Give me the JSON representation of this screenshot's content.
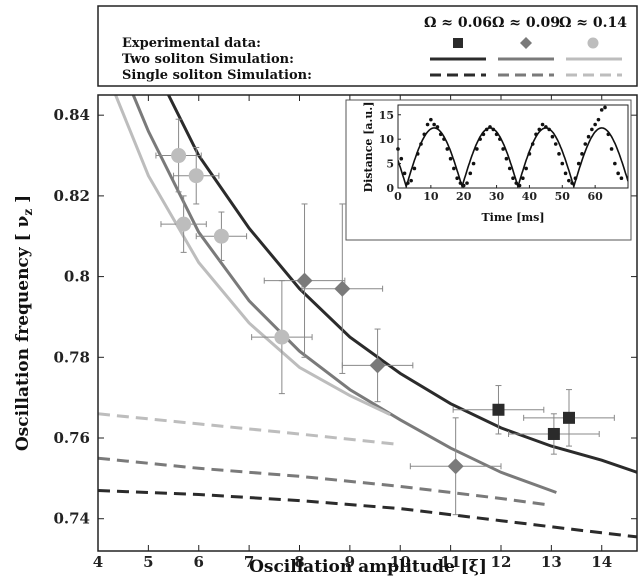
{
  "colors": {
    "omega_006": "#2b2b2b",
    "omega_009": "#7a7a7a",
    "omega_014": "#bdbdbd",
    "errorbar": "#888888",
    "axis": "#222222"
  },
  "legend": {
    "headers": [
      "Ω ≈ 0.06",
      "Ω ≈ 0.09",
      "Ω ≈ 0.14"
    ],
    "rows": [
      "Experimental data:",
      "Two soliton Simulation:",
      "Single soliton Simulation:"
    ]
  },
  "chart_data": [
    {
      "type": "scatter",
      "xlabel": "Oscillation amplitude [ξ]",
      "ylabel": "Oscillation frequency [ ν",
      "ylabel_sub": "z",
      "ylabel_end": " ]",
      "xlim": [
        4,
        14.7
      ],
      "ylim": [
        0.732,
        0.845
      ],
      "xticks": [
        "4",
        "5",
        "6",
        "7",
        "8",
        "9",
        "10",
        "11",
        "12",
        "13",
        "14"
      ],
      "yticks": [
        "0.74",
        "0.76",
        "0.78",
        "0.8",
        "0.82",
        "0.84"
      ],
      "xtick_values": [
        4,
        5,
        6,
        7,
        8,
        9,
        10,
        11,
        12,
        13,
        14
      ],
      "ytick_values": [
        0.74,
        0.76,
        0.78,
        0.8,
        0.82,
        0.84
      ],
      "series": [
        {
          "name": "Ω ≈ 0.06",
          "marker": "square",
          "experimental": [
            {
              "x": 11.95,
              "y": 0.767,
              "xerr": 0.9,
              "yerr": 0.006
            },
            {
              "x": 13.05,
              "y": 0.761,
              "xerr": 0.9,
              "yerr": 0.005
            },
            {
              "x": 13.35,
              "y": 0.765,
              "xerr": 0.9,
              "yerr": 0.007
            }
          ],
          "two_soliton": [
            [
              5.4,
              0.845
            ],
            [
              6,
              0.83
            ],
            [
              7,
              0.812
            ],
            [
              8,
              0.797
            ],
            [
              9,
              0.785
            ],
            [
              10,
              0.776
            ],
            [
              11,
              0.7685
            ],
            [
              12,
              0.7625
            ],
            [
              13,
              0.758
            ],
            [
              14,
              0.7545
            ],
            [
              14.7,
              0.7515
            ]
          ],
          "single_soliton": [
            [
              4,
              0.747
            ],
            [
              6,
              0.746
            ],
            [
              8,
              0.7445
            ],
            [
              10,
              0.7425
            ],
            [
              12,
              0.7395
            ],
            [
              13,
              0.738
            ],
            [
              14,
              0.7365
            ],
            [
              14.7,
              0.7355
            ]
          ]
        },
        {
          "name": "Ω ≈ 0.09",
          "marker": "diamond",
          "experimental": [
            {
              "x": 8.1,
              "y": 0.799,
              "xerr": 0.8,
              "yerr": 0.019
            },
            {
              "x": 8.85,
              "y": 0.797,
              "xerr": 0.8,
              "yerr": 0.021
            },
            {
              "x": 9.55,
              "y": 0.778,
              "xerr": 0.7,
              "yerr": 0.009
            },
            {
              "x": 11.1,
              "y": 0.753,
              "xerr": 0.9,
              "yerr": 0.012
            }
          ],
          "two_soliton": [
            [
              4.7,
              0.845
            ],
            [
              5,
              0.836
            ],
            [
              6,
              0.811
            ],
            [
              7,
              0.794
            ],
            [
              8,
              0.7815
            ],
            [
              9,
              0.772
            ],
            [
              10,
              0.7645
            ],
            [
              11,
              0.7575
            ],
            [
              12,
              0.7515
            ],
            [
              13.1,
              0.7465
            ]
          ],
          "single_soliton": [
            [
              4,
              0.755
            ],
            [
              6,
              0.7525
            ],
            [
              8,
              0.7505
            ],
            [
              10,
              0.748
            ],
            [
              12,
              0.745
            ],
            [
              12.9,
              0.7435
            ]
          ]
        },
        {
          "name": "Ω ≈ 0.14",
          "marker": "circle",
          "experimental": [
            {
              "x": 5.6,
              "y": 0.83,
              "xerr": 0.45,
              "yerr": 0.009
            },
            {
              "x": 5.7,
              "y": 0.813,
              "xerr": 0.45,
              "yerr": 0.007
            },
            {
              "x": 5.95,
              "y": 0.825,
              "xerr": 0.45,
              "yerr": 0.007
            },
            {
              "x": 6.45,
              "y": 0.81,
              "xerr": 0.5,
              "yerr": 0.006
            },
            {
              "x": 7.65,
              "y": 0.785,
              "xerr": 0.6,
              "yerr": 0.014
            }
          ],
          "two_soliton": [
            [
              4.35,
              0.845
            ],
            [
              5,
              0.825
            ],
            [
              6,
              0.8035
            ],
            [
              7,
              0.7885
            ],
            [
              8,
              0.7775
            ],
            [
              9,
              0.7705
            ],
            [
              9.8,
              0.7658
            ]
          ],
          "single_soliton": [
            [
              4,
              0.766
            ],
            [
              6,
              0.7635
            ],
            [
              8,
              0.761
            ],
            [
              9.9,
              0.7585
            ]
          ]
        }
      ]
    },
    {
      "type": "line",
      "xlabel": "Time [ms]",
      "ylabel": "Distance [a.u.]",
      "xlim": [
        0,
        70
      ],
      "ylim": [
        0,
        17
      ],
      "xticks": [
        "0",
        "10",
        "20",
        "30",
        "40",
        "50",
        "60"
      ],
      "yticks": [
        "0",
        "5",
        "10",
        "15"
      ],
      "xtick_values": [
        0,
        10,
        20,
        30,
        40,
        50,
        60
      ],
      "ytick_values": [
        0,
        5,
        10,
        15
      ],
      "fit_period_ms": 17.0,
      "points": [
        [
          0,
          8
        ],
        [
          1,
          6
        ],
        [
          2,
          3
        ],
        [
          3,
          1
        ],
        [
          4,
          1.5
        ],
        [
          5,
          4
        ],
        [
          6,
          7
        ],
        [
          7,
          9
        ],
        [
          8,
          11
        ],
        [
          9,
          13
        ],
        [
          10,
          14
        ],
        [
          11,
          13
        ],
        [
          12,
          12.5
        ],
        [
          13,
          11
        ],
        [
          14,
          10
        ],
        [
          15,
          8
        ],
        [
          16,
          6
        ],
        [
          17,
          4
        ],
        [
          18,
          2
        ],
        [
          19,
          1
        ],
        [
          20,
          0.5
        ],
        [
          21,
          1
        ],
        [
          22,
          3
        ],
        [
          23,
          5
        ],
        [
          24,
          8
        ],
        [
          25,
          10
        ],
        [
          26,
          11
        ],
        [
          27,
          12
        ],
        [
          28,
          12.5
        ],
        [
          29,
          12
        ],
        [
          30,
          11
        ],
        [
          31,
          10
        ],
        [
          32,
          8
        ],
        [
          33,
          6
        ],
        [
          34,
          4
        ],
        [
          35,
          2
        ],
        [
          36,
          1
        ],
        [
          37,
          0.5
        ],
        [
          38,
          2
        ],
        [
          39,
          4
        ],
        [
          40,
          7
        ],
        [
          41,
          9
        ],
        [
          42,
          11
        ],
        [
          43,
          12
        ],
        [
          44,
          13
        ],
        [
          45,
          12.5
        ],
        [
          46,
          12
        ],
        [
          47,
          10.5
        ],
        [
          48,
          9
        ],
        [
          49,
          7
        ],
        [
          50,
          5
        ],
        [
          51,
          3
        ],
        [
          52,
          1.5
        ],
        [
          53,
          1
        ],
        [
          54,
          2
        ],
        [
          55,
          5
        ],
        [
          56,
          7
        ],
        [
          57,
          9
        ],
        [
          58,
          10.5
        ],
        [
          59,
          12
        ],
        [
          60,
          13
        ],
        [
          61,
          14
        ],
        [
          62,
          16
        ],
        [
          63,
          16.5
        ],
        [
          64,
          11
        ],
        [
          65,
          8
        ],
        [
          66,
          5
        ],
        [
          67,
          3
        ],
        [
          68,
          2
        ]
      ]
    }
  ]
}
